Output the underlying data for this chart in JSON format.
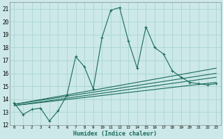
{
  "xlabel": "Humidex (Indice chaleur)",
  "background_color": "#cce8e8",
  "grid_color": "#aad4d4",
  "line_color": "#1a6b5a",
  "xlim": [
    -0.5,
    23.5
  ],
  "ylim": [
    12,
    21.5
  ],
  "yticks": [
    12,
    13,
    14,
    15,
    16,
    17,
    18,
    19,
    20,
    21
  ],
  "main_series": [
    13.7,
    12.8,
    13.2,
    13.3,
    12.3,
    13.1,
    14.3,
    17.3,
    16.5,
    14.8,
    18.8,
    20.9,
    21.1,
    18.5,
    16.4,
    19.6,
    18.0,
    17.5,
    16.2,
    15.7,
    15.3,
    15.2,
    15.1,
    15.2
  ],
  "regression_lines": [
    {
      "x": [
        0,
        23
      ],
      "y": [
        13.5,
        15.3
      ]
    },
    {
      "x": [
        0,
        23
      ],
      "y": [
        13.5,
        15.7
      ]
    },
    {
      "x": [
        0,
        23
      ],
      "y": [
        13.6,
        16.0
      ]
    },
    {
      "x": [
        0,
        23
      ],
      "y": [
        13.6,
        16.4
      ]
    }
  ]
}
